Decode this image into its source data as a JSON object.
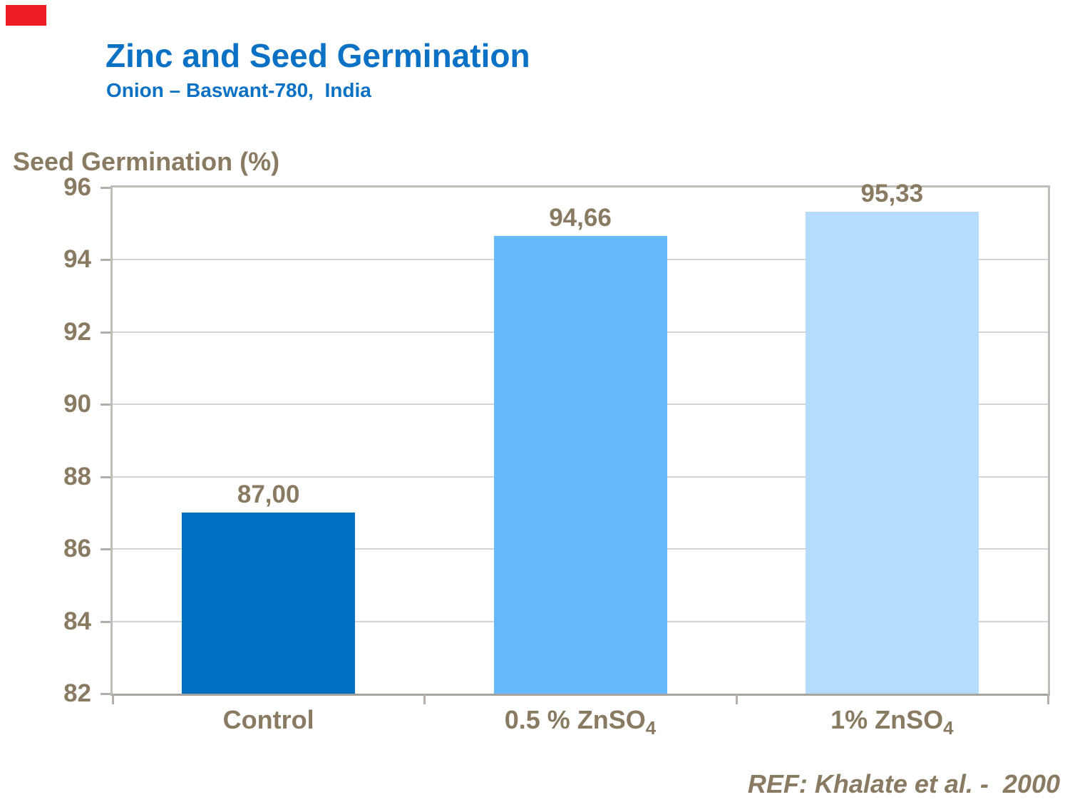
{
  "slide": {
    "accent_block_color": "#EE1C25",
    "title": "Zinc and Seed Germination",
    "subtitle": "Onion – Baswant-780,  India",
    "reference": "REF: Khalate et al. -  2000"
  },
  "chart_data": {
    "type": "bar",
    "title": "Zinc and Seed Germination",
    "subtitle": "Onion – Baswant-780, India",
    "ylabel": "Seed Germination (%)",
    "xlabel": "",
    "categories": [
      "Control",
      "0.5 % ZnSO4",
      "1% ZnSO4"
    ],
    "categories_rich": [
      {
        "main": "Control",
        "sub": ""
      },
      {
        "main": "0.5 % ZnSO",
        "sub": "4"
      },
      {
        "main": "1% ZnSO",
        "sub": "4"
      }
    ],
    "values": [
      87.0,
      94.66,
      95.33
    ],
    "value_labels": [
      "87,00",
      "94,66",
      "95,33"
    ],
    "bar_colors": [
      "#0170C2",
      "#64BAFC",
      "#B6DCFD"
    ],
    "ylim": [
      82,
      96
    ],
    "yticks": [
      82,
      84,
      86,
      88,
      90,
      92,
      94,
      96
    ],
    "grid": "horizontal-light",
    "legend": "none",
    "reference": "REF: Khalate et al. - 2000",
    "colors": {
      "title_text": "#0B71C5",
      "axis_text": "#897A62",
      "gridline": "#D4D4D4",
      "plot_border": "#C0BDB8",
      "axis_line": "#A6A39E",
      "tick_mark": "#B3B0AB"
    }
  }
}
